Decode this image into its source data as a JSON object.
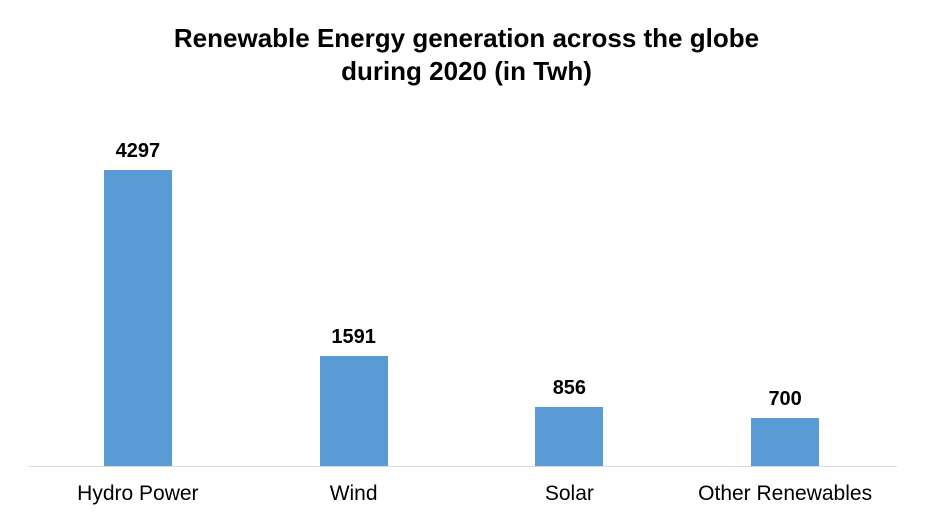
{
  "chart_data": {
    "type": "bar",
    "title": "Renewable Energy generation across the globe during 2020 (in Twh)",
    "title_lines": [
      "Renewable Energy generation across the globe",
      "during 2020 (in Twh)"
    ],
    "categories": [
      "Hydro Power",
      "Wind",
      "Solar",
      "Other Renewables"
    ],
    "values": [
      4297,
      1591,
      856,
      700
    ],
    "xlabel": "",
    "ylabel": "",
    "ylim": [
      0,
      4500
    ],
    "grid": false,
    "legend": false,
    "data_labels": true,
    "bar_color": "#5B9BD5",
    "value_label_color": "#000000",
    "axis_line_color": "#d9d9d9"
  }
}
